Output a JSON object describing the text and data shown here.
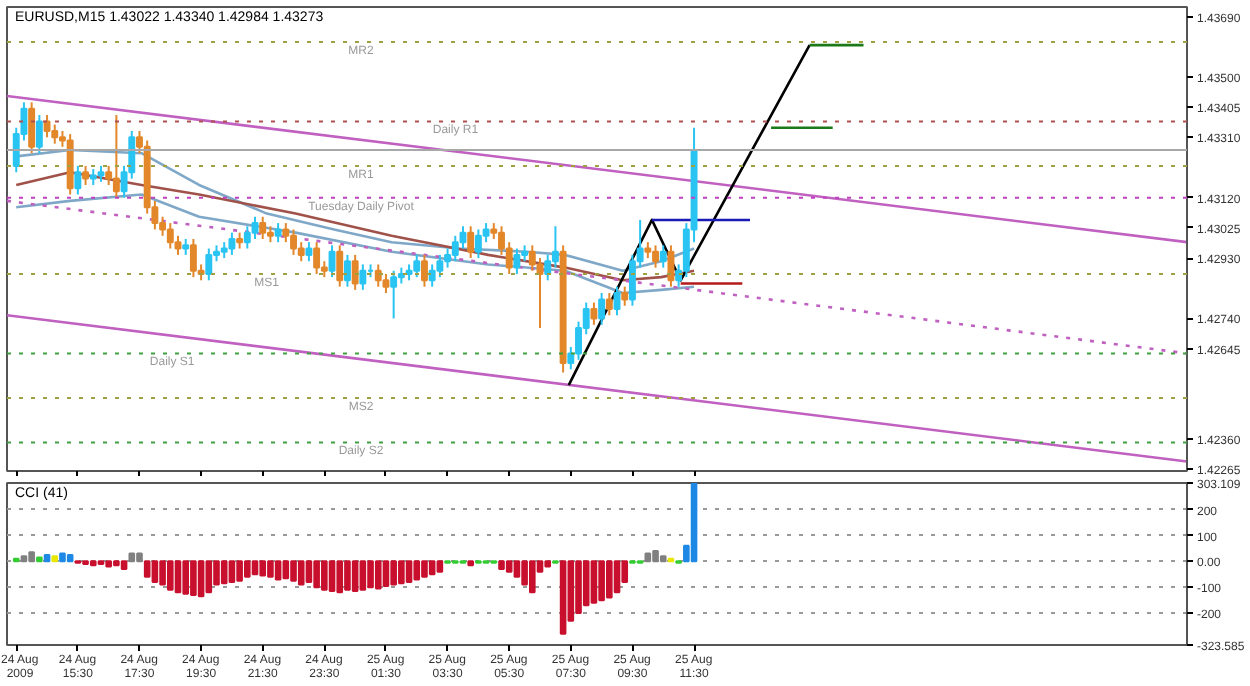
{
  "chart_data": [
    {
      "type": "candlestick",
      "title": "EURUSD,M15  1.43022 1.43340 1.42984 1.43273",
      "x": [
        "2009-08-24T13:30",
        "2009-08-24T13:45",
        "2009-08-24T14:00",
        "2009-08-24T14:15",
        "2009-08-24T14:30",
        "2009-08-24T14:45",
        "2009-08-24T15:00",
        "2009-08-24T15:15",
        "2009-08-24T15:30",
        "2009-08-24T15:45",
        "2009-08-24T16:00",
        "2009-08-24T16:15",
        "2009-08-24T16:30",
        "2009-08-24T16:45",
        "2009-08-24T17:00",
        "2009-08-24T17:15",
        "2009-08-24T17:30",
        "2009-08-24T17:45",
        "2009-08-24T18:00",
        "2009-08-24T18:15",
        "2009-08-24T18:30",
        "2009-08-24T18:45",
        "2009-08-24T19:00",
        "2009-08-24T19:15",
        "2009-08-24T19:30",
        "2009-08-24T19:45",
        "2009-08-24T20:00",
        "2009-08-24T20:15",
        "2009-08-24T20:30",
        "2009-08-24T20:45",
        "2009-08-24T21:00",
        "2009-08-24T21:15",
        "2009-08-24T21:30",
        "2009-08-24T21:45",
        "2009-08-24T22:00",
        "2009-08-24T22:15",
        "2009-08-24T22:30",
        "2009-08-24T22:45",
        "2009-08-24T23:00",
        "2009-08-24T23:15",
        "2009-08-24T23:30",
        "2009-08-24T23:45",
        "2009-08-25T00:00",
        "2009-08-25T00:15",
        "2009-08-25T00:30",
        "2009-08-25T00:45",
        "2009-08-25T01:00",
        "2009-08-25T01:15",
        "2009-08-25T01:30",
        "2009-08-25T01:45",
        "2009-08-25T02:00",
        "2009-08-25T02:15",
        "2009-08-25T02:30",
        "2009-08-25T02:45",
        "2009-08-25T03:00",
        "2009-08-25T03:15",
        "2009-08-25T03:30",
        "2009-08-25T03:45",
        "2009-08-25T04:00",
        "2009-08-25T04:15",
        "2009-08-25T04:30",
        "2009-08-25T04:45",
        "2009-08-25T05:00",
        "2009-08-25T05:15",
        "2009-08-25T05:30",
        "2009-08-25T05:45",
        "2009-08-25T06:00",
        "2009-08-25T06:15",
        "2009-08-25T06:30",
        "2009-08-25T06:45",
        "2009-08-25T07:00",
        "2009-08-25T07:15",
        "2009-08-25T07:30",
        "2009-08-25T07:45",
        "2009-08-25T08:00",
        "2009-08-25T08:15",
        "2009-08-25T08:30",
        "2009-08-25T08:45",
        "2009-08-25T09:00",
        "2009-08-25T09:15",
        "2009-08-25T09:30",
        "2009-08-25T09:45",
        "2009-08-25T10:00",
        "2009-08-25T10:15",
        "2009-08-25T10:30",
        "2009-08-25T10:45",
        "2009-08-25T11:00",
        "2009-08-25T11:15",
        "2009-08-25T11:30"
      ],
      "ohlc": [
        [
          1.4322,
          1.4334,
          1.432,
          1.4332
        ],
        [
          1.4332,
          1.4342,
          1.433,
          1.434
        ],
        [
          1.434,
          1.4342,
          1.4326,
          1.4328
        ],
        [
          1.4328,
          1.4338,
          1.4326,
          1.4336
        ],
        [
          1.4336,
          1.4338,
          1.4331,
          1.4333
        ],
        [
          1.4333,
          1.4335,
          1.4329,
          1.4331
        ],
        [
          1.4331,
          1.4333,
          1.4328,
          1.433
        ],
        [
          1.433,
          1.4332,
          1.4313,
          1.4315
        ],
        [
          1.4315,
          1.4322,
          1.4313,
          1.432
        ],
        [
          1.432,
          1.4322,
          1.4316,
          1.4318
        ],
        [
          1.4318,
          1.4321,
          1.4316,
          1.4319
        ],
        [
          1.4319,
          1.4322,
          1.4317,
          1.432
        ],
        [
          1.432,
          1.4322,
          1.4316,
          1.4318
        ],
        [
          1.4318,
          1.4338,
          1.4312,
          1.4314
        ],
        [
          1.4314,
          1.4322,
          1.4312,
          1.432
        ],
        [
          1.432,
          1.4333,
          1.4318,
          1.4331
        ],
        [
          1.4331,
          1.4333,
          1.4326,
          1.4328
        ],
        [
          1.4328,
          1.433,
          1.4307,
          1.4309
        ],
        [
          1.4309,
          1.4311,
          1.4302,
          1.4304
        ],
        [
          1.4304,
          1.4306,
          1.43,
          1.4302
        ],
        [
          1.4302,
          1.4304,
          1.4296,
          1.4298
        ],
        [
          1.4298,
          1.43,
          1.4294,
          1.4296
        ],
        [
          1.4296,
          1.4299,
          1.4294,
          1.4297
        ],
        [
          1.4297,
          1.4299,
          1.4287,
          1.4289
        ],
        [
          1.4289,
          1.4291,
          1.4286,
          1.4288
        ],
        [
          1.4288,
          1.4296,
          1.4286,
          1.4294
        ],
        [
          1.4294,
          1.4297,
          1.4292,
          1.4295
        ],
        [
          1.4295,
          1.4298,
          1.4293,
          1.4296
        ],
        [
          1.4296,
          1.4301,
          1.4294,
          1.4299
        ],
        [
          1.4299,
          1.4301,
          1.4296,
          1.4298
        ],
        [
          1.4298,
          1.4303,
          1.4296,
          1.4301
        ],
        [
          1.4301,
          1.4306,
          1.4299,
          1.4304
        ],
        [
          1.4304,
          1.4306,
          1.4299,
          1.4301
        ],
        [
          1.4301,
          1.4303,
          1.4298,
          1.43
        ],
        [
          1.43,
          1.4304,
          1.4298,
          1.4302
        ],
        [
          1.4302,
          1.4304,
          1.4298,
          1.43
        ],
        [
          1.43,
          1.4302,
          1.4294,
          1.4296
        ],
        [
          1.4296,
          1.4298,
          1.4292,
          1.4294
        ],
        [
          1.4294,
          1.4298,
          1.4292,
          1.4296
        ],
        [
          1.4296,
          1.4298,
          1.4288,
          1.429
        ],
        [
          1.429,
          1.4292,
          1.4287,
          1.4289
        ],
        [
          1.4289,
          1.4297,
          1.4287,
          1.4295
        ],
        [
          1.4295,
          1.4297,
          1.4284,
          1.4286
        ],
        [
          1.4286,
          1.4294,
          1.4284,
          1.4292
        ],
        [
          1.4292,
          1.4294,
          1.4283,
          1.4285
        ],
        [
          1.4285,
          1.4291,
          1.4283,
          1.4289
        ],
        [
          1.4289,
          1.4291,
          1.4287,
          1.4289
        ],
        [
          1.4289,
          1.4291,
          1.4284,
          1.4286
        ],
        [
          1.4286,
          1.4288,
          1.4282,
          1.4284
        ],
        [
          1.4284,
          1.4289,
          1.4274,
          1.4287
        ],
        [
          1.4287,
          1.429,
          1.4285,
          1.4288
        ],
        [
          1.4288,
          1.4291,
          1.4286,
          1.4289
        ],
        [
          1.4289,
          1.4294,
          1.4287,
          1.4292
        ],
        [
          1.4292,
          1.4294,
          1.4284,
          1.4286
        ],
        [
          1.4286,
          1.4291,
          1.4284,
          1.4289
        ],
        [
          1.4289,
          1.4294,
          1.4287,
          1.4292
        ],
        [
          1.4292,
          1.4296,
          1.429,
          1.4294
        ],
        [
          1.4294,
          1.43,
          1.4292,
          1.4298
        ],
        [
          1.4298,
          1.4303,
          1.4296,
          1.4301
        ],
        [
          1.4301,
          1.4303,
          1.4293,
          1.4295
        ],
        [
          1.4295,
          1.4302,
          1.4293,
          1.43
        ],
        [
          1.43,
          1.4304,
          1.4298,
          1.4302
        ],
        [
          1.4302,
          1.4304,
          1.4299,
          1.4301
        ],
        [
          1.4301,
          1.4303,
          1.4294,
          1.4296
        ],
        [
          1.4296,
          1.4298,
          1.4288,
          1.429
        ],
        [
          1.429,
          1.4296,
          1.4288,
          1.4294
        ],
        [
          1.4294,
          1.4297,
          1.4292,
          1.4295
        ],
        [
          1.4295,
          1.4297,
          1.4289,
          1.4291
        ],
        [
          1.4291,
          1.4293,
          1.4271,
          1.4288
        ],
        [
          1.4288,
          1.4294,
          1.4286,
          1.4292
        ],
        [
          1.4292,
          1.4303,
          1.429,
          1.4295
        ],
        [
          1.4295,
          1.4297,
          1.4257,
          1.426
        ],
        [
          1.426,
          1.4265,
          1.4258,
          1.4263
        ],
        [
          1.4263,
          1.4273,
          1.4261,
          1.4271
        ],
        [
          1.4271,
          1.4279,
          1.4269,
          1.4277
        ],
        [
          1.4277,
          1.4279,
          1.4272,
          1.4274
        ],
        [
          1.4274,
          1.4282,
          1.4272,
          1.428
        ],
        [
          1.428,
          1.4282,
          1.4275,
          1.4277
        ],
        [
          1.4277,
          1.4284,
          1.4275,
          1.4282
        ],
        [
          1.4282,
          1.4284,
          1.4278,
          1.428
        ],
        [
          1.428,
          1.4294,
          1.4278,
          1.4292
        ],
        [
          1.4292,
          1.4305,
          1.429,
          1.4296
        ],
        [
          1.4296,
          1.4298,
          1.4293,
          1.4295
        ],
        [
          1.4295,
          1.4297,
          1.429,
          1.4292
        ],
        [
          1.4292,
          1.4297,
          1.429,
          1.4295
        ],
        [
          1.4295,
          1.4297,
          1.4284,
          1.4286
        ],
        [
          1.4286,
          1.4291,
          1.4284,
          1.4289
        ],
        [
          1.4289,
          1.4304,
          1.4287,
          1.4302
        ],
        [
          1.4302,
          1.4334,
          1.4298,
          1.4327
        ]
      ],
      "colors": [
        "#29c4f2",
        "#29c4f2",
        "#e3872b",
        "#29c4f2",
        "#e3872b",
        "#e3872b",
        "#e3872b",
        "#e3872b",
        "#29c4f2",
        "#e3872b",
        "#29c4f2",
        "#29c4f2",
        "#e3872b",
        "#e3872b",
        "#29c4f2",
        "#29c4f2",
        "#e3872b",
        "#e3872b",
        "#e3872b",
        "#e3872b",
        "#e3872b",
        "#e3872b",
        "#29c4f2",
        "#e3872b",
        "#e3872b",
        "#29c4f2",
        "#29c4f2",
        "#29c4f2",
        "#29c4f2",
        "#e3872b",
        "#29c4f2",
        "#29c4f2",
        "#e3872b",
        "#e3872b",
        "#29c4f2",
        "#e3872b",
        "#e3872b",
        "#e3872b",
        "#29c4f2",
        "#e3872b",
        "#e3872b",
        "#29c4f2",
        "#e3872b",
        "#29c4f2",
        "#e3872b",
        "#29c4f2",
        "#29c4f2",
        "#e3872b",
        "#e3872b",
        "#29c4f2",
        "#29c4f2",
        "#29c4f2",
        "#29c4f2",
        "#e3872b",
        "#29c4f2",
        "#29c4f2",
        "#29c4f2",
        "#29c4f2",
        "#29c4f2",
        "#e3872b",
        "#29c4f2",
        "#29c4f2",
        "#e3872b",
        "#e3872b",
        "#e3872b",
        "#29c4f2",
        "#29c4f2",
        "#e3872b",
        "#e3872b",
        "#29c4f2",
        "#29c4f2",
        "#e3872b",
        "#29c4f2",
        "#29c4f2",
        "#29c4f2",
        "#e3872b",
        "#29c4f2",
        "#e3872b",
        "#29c4f2",
        "#e3872b",
        "#29c4f2",
        "#29c4f2",
        "#e3872b",
        "#e3872b",
        "#29c4f2",
        "#e3872b",
        "#29c4f2",
        "#29c4f2",
        "#29c4f2"
      ],
      "series": [
        {
          "type": "line",
          "color": "#7fa8c8",
          "x": [
            "2009-08-24T13:30",
            "2009-08-24T15:15",
            "2009-08-24T17:34",
            "2009-08-24T19:26",
            "2009-08-24T21:38",
            "2009-08-24T23:49",
            "2009-08-25T01:41",
            "2009-08-25T03:53",
            "2009-08-25T06:04",
            "2009-08-25T07:19",
            "2009-08-25T09:11",
            "2009-08-25T10:26",
            "2009-08-25T11:30"
          ],
          "values": [
            1.4325,
            1.4327,
            1.4326,
            1.4316,
            1.4307,
            1.4302,
            1.4298,
            1.4296,
            1.4295,
            1.4294,
            1.4289,
            1.4292,
            1.4296
          ]
        },
        {
          "type": "line",
          "color": "#a0524a",
          "x": [
            "2009-08-24T13:30",
            "2009-08-24T15:15",
            "2009-08-24T17:34",
            "2009-08-24T19:26",
            "2009-08-24T22:34",
            "2009-08-25T01:41",
            "2009-08-25T04:49",
            "2009-08-25T07:19",
            "2009-08-25T09:11",
            "2009-08-25T10:26",
            "2009-08-25T11:30"
          ],
          "values": [
            1.4316,
            1.432,
            1.4316,
            1.4313,
            1.4307,
            1.43,
            1.4294,
            1.429,
            1.4286,
            1.4287,
            1.4289
          ]
        },
        {
          "type": "line",
          "color": "#7fa8c8",
          "x": [
            "2009-08-24T13:30",
            "2009-08-24T15:15",
            "2009-08-24T17:34",
            "2009-08-24T19:26",
            "2009-08-24T22:34",
            "2009-08-25T01:41",
            "2009-08-25T04:49",
            "2009-08-25T07:19",
            "2009-08-25T09:11",
            "2009-08-25T10:26",
            "2009-08-25T11:30"
          ],
          "values": [
            1.4309,
            1.4311,
            1.4313,
            1.4306,
            1.4301,
            1.4295,
            1.4291,
            1.4289,
            1.4282,
            1.4283,
            1.4284
          ]
        },
        {
          "type": "line",
          "color": "#c060c0",
          "x": [
            "2009-08-24T13:12",
            "2009-08-26T03:30"
          ],
          "values": [
            1.4344,
            1.4298
          ]
        },
        {
          "type": "line",
          "color": "#c060c0",
          "line_style": "dotted",
          "x": [
            "2009-08-24T13:12",
            "2009-08-26T03:30"
          ],
          "values": [
            1.4311,
            1.4263
          ]
        },
        {
          "type": "line",
          "color": "#c060c0",
          "x": [
            "2009-08-24T13:12",
            "2009-08-26T03:30"
          ],
          "values": [
            1.4275,
            1.4229
          ]
        },
        {
          "type": "line",
          "color": "#000000",
          "x": [
            "2009-08-25T07:26",
            "2009-08-25T10:08",
            "2009-08-25T11:04",
            "2009-08-25T15:15"
          ],
          "values": [
            1.4253,
            1.4305,
            1.4286,
            1.436
          ]
        },
        {
          "type": "line",
          "color": "#1a1ab4",
          "x": [
            "2009-08-25T10:08",
            "2009-08-25T13:19"
          ],
          "values": [
            1.4305,
            1.4305
          ]
        },
        {
          "type": "line",
          "color": "#b41a1a",
          "x": [
            "2009-08-25T11:04",
            "2009-08-25T13:04"
          ],
          "values": [
            1.4285,
            1.4285
          ]
        },
        {
          "type": "line",
          "color": "#1a7a1a",
          "x": [
            "2009-08-25T14:00",
            "2009-08-25T16:00"
          ],
          "values": [
            1.4334,
            1.4334
          ]
        },
        {
          "type": "line",
          "color": "#1a7a1a",
          "x": [
            "2009-08-25T15:15",
            "2009-08-25T17:00"
          ],
          "values": [
            1.436,
            1.436
          ]
        }
      ],
      "ref_lines": [
        {
          "axis": "y",
          "value": 1.4361,
          "label": "MR2",
          "color": "#a0a040",
          "line_style": "dotted"
        },
        {
          "axis": "y",
          "value": 1.4336,
          "label": "Daily R1",
          "color": "#b05050",
          "line_style": "dotted"
        },
        {
          "axis": "y",
          "value": 1.4327,
          "label": null,
          "color": "#a8a8a8",
          "line_style": "solid"
        },
        {
          "axis": "y",
          "value": 1.4322,
          "label": "MR1",
          "color": "#a0a040",
          "line_style": "dotted"
        },
        {
          "axis": "y",
          "value": 1.4312,
          "label": "Tuesday Daily Pivot",
          "color": "#c040c0",
          "line_style": "dotted"
        },
        {
          "axis": "y",
          "value": 1.4288,
          "label": "MS1",
          "color": "#a0a040",
          "line_style": "dotted"
        },
        {
          "axis": "y",
          "value": 1.4263,
          "label": "Daily S1",
          "color": "#40a040",
          "line_style": "dotted"
        },
        {
          "axis": "y",
          "value": 1.4249,
          "label": "MS2",
          "color": "#a0a040",
          "line_style": "dotted"
        },
        {
          "axis": "y",
          "value": 1.4235,
          "label": "Daily S2",
          "color": "#40a040",
          "line_style": "dotted"
        }
      ],
      "xlim": [
        "2009-08-24T13:12",
        "2009-08-26T03:30"
      ],
      "xticks": [
        "2009-08-24T13:30",
        "2009-08-24T15:30",
        "2009-08-24T17:30",
        "2009-08-24T19:30",
        "2009-08-24T21:30",
        "2009-08-24T23:30",
        "2009-08-25T01:30",
        "2009-08-25T03:30",
        "2009-08-25T05:30",
        "2009-08-25T07:30",
        "2009-08-25T09:30",
        "2009-08-25T11:30"
      ],
      "ylim": [
        1.4226,
        1.4372
      ],
      "yticks": [
        {
          "value": 1.4369,
          "label": "1.43690"
        },
        {
          "value": 1.435,
          "label": "1.43500"
        },
        {
          "value": 1.43405,
          "label": "1.43405"
        },
        {
          "value": 1.4331,
          "label": "1.43310"
        },
        {
          "value": 1.4312,
          "label": "1.43120"
        },
        {
          "value": 1.43025,
          "label": "1.43025"
        },
        {
          "value": 1.4293,
          "label": "1.42930"
        },
        {
          "value": 1.4274,
          "label": "1.42740"
        },
        {
          "value": 1.42645,
          "label": "1.42645"
        },
        {
          "value": 1.4236,
          "label": "1.42360"
        },
        {
          "value": 1.42265,
          "label": "1.42265"
        }
      ],
      "tick_labels": "y"
    },
    {
      "type": "bar",
      "title": "CCI (41)",
      "x": [
        "2009-08-24T13:30",
        "2009-08-24T13:45",
        "2009-08-24T14:00",
        "2009-08-24T14:15",
        "2009-08-24T14:30",
        "2009-08-24T14:45",
        "2009-08-24T15:00",
        "2009-08-24T15:15",
        "2009-08-24T15:30",
        "2009-08-24T15:45",
        "2009-08-24T16:00",
        "2009-08-24T16:15",
        "2009-08-24T16:30",
        "2009-08-24T16:45",
        "2009-08-24T17:00",
        "2009-08-24T17:15",
        "2009-08-24T17:30",
        "2009-08-24T17:45",
        "2009-08-24T18:00",
        "2009-08-24T18:15",
        "2009-08-24T18:30",
        "2009-08-24T18:45",
        "2009-08-24T19:00",
        "2009-08-24T19:15",
        "2009-08-24T19:30",
        "2009-08-24T19:45",
        "2009-08-24T20:00",
        "2009-08-24T20:15",
        "2009-08-24T20:30",
        "2009-08-24T20:45",
        "2009-08-24T21:00",
        "2009-08-24T21:15",
        "2009-08-24T21:30",
        "2009-08-24T21:45",
        "2009-08-24T22:00",
        "2009-08-24T22:15",
        "2009-08-24T22:30",
        "2009-08-24T22:45",
        "2009-08-24T23:00",
        "2009-08-24T23:15",
        "2009-08-24T23:30",
        "2009-08-24T23:45",
        "2009-08-25T00:00",
        "2009-08-25T00:15",
        "2009-08-25T00:30",
        "2009-08-25T00:45",
        "2009-08-25T01:00",
        "2009-08-25T01:15",
        "2009-08-25T01:30",
        "2009-08-25T01:45",
        "2009-08-25T02:00",
        "2009-08-25T02:15",
        "2009-08-25T02:30",
        "2009-08-25T02:45",
        "2009-08-25T03:00",
        "2009-08-25T03:15",
        "2009-08-25T03:30",
        "2009-08-25T03:45",
        "2009-08-25T04:00",
        "2009-08-25T04:15",
        "2009-08-25T04:30",
        "2009-08-25T04:45",
        "2009-08-25T05:00",
        "2009-08-25T05:15",
        "2009-08-25T05:30",
        "2009-08-25T05:45",
        "2009-08-25T06:00",
        "2009-08-25T06:15",
        "2009-08-25T06:30",
        "2009-08-25T06:45",
        "2009-08-25T07:00",
        "2009-08-25T07:15",
        "2009-08-25T07:30",
        "2009-08-25T07:45",
        "2009-08-25T08:00",
        "2009-08-25T08:15",
        "2009-08-25T08:30",
        "2009-08-25T08:45",
        "2009-08-25T09:00",
        "2009-08-25T09:15",
        "2009-08-25T09:30",
        "2009-08-25T09:45",
        "2009-08-25T10:00",
        "2009-08-25T10:15",
        "2009-08-25T10:30",
        "2009-08-25T10:45",
        "2009-08-25T11:00",
        "2009-08-25T11:15",
        "2009-08-25T11:30"
      ],
      "values": [
        10,
        20,
        35,
        15,
        25,
        20,
        30,
        25,
        -5,
        -10,
        -15,
        -10,
        -20,
        -15,
        -30,
        30,
        30,
        -60,
        -80,
        -90,
        -110,
        -120,
        -125,
        -130,
        -135,
        -120,
        -90,
        -85,
        -80,
        -75,
        -60,
        -50,
        -55,
        -60,
        -70,
        -65,
        -75,
        -90,
        -80,
        -100,
        -110,
        -115,
        -120,
        -110,
        -115,
        -110,
        -100,
        -105,
        -95,
        -90,
        -85,
        -80,
        -70,
        -60,
        -50,
        -40,
        -5,
        -5,
        -5,
        -15,
        -5,
        -5,
        -5,
        -30,
        -40,
        -60,
        -90,
        -120,
        -40,
        -20,
        -5,
        -280,
        -230,
        -200,
        -170,
        -160,
        -150,
        -140,
        -120,
        -80,
        -5,
        -5,
        30,
        40,
        20,
        10,
        -5,
        60,
        300
      ],
      "colors": [
        "#33cc33",
        "#808080",
        "#808080",
        "#33cc33",
        "#1e88e5",
        "#e8e800",
        "#1e88e5",
        "#1e88e5",
        "#c8102e",
        "#c8102e",
        "#c8102e",
        "#c8102e",
        "#c8102e",
        "#c8102e",
        "#c8102e",
        "#808080",
        "#808080",
        "#c8102e",
        "#c8102e",
        "#c8102e",
        "#c8102e",
        "#c8102e",
        "#c8102e",
        "#c8102e",
        "#c8102e",
        "#c8102e",
        "#c8102e",
        "#c8102e",
        "#c8102e",
        "#c8102e",
        "#c8102e",
        "#c8102e",
        "#c8102e",
        "#c8102e",
        "#c8102e",
        "#c8102e",
        "#c8102e",
        "#c8102e",
        "#c8102e",
        "#c8102e",
        "#c8102e",
        "#c8102e",
        "#c8102e",
        "#c8102e",
        "#c8102e",
        "#c8102e",
        "#c8102e",
        "#c8102e",
        "#c8102e",
        "#c8102e",
        "#c8102e",
        "#c8102e",
        "#c8102e",
        "#c8102e",
        "#c8102e",
        "#c8102e",
        "#33cc33",
        "#33cc33",
        "#33cc33",
        "#c8102e",
        "#33cc33",
        "#33cc33",
        "#33cc33",
        "#c8102e",
        "#c8102e",
        "#c8102e",
        "#c8102e",
        "#c8102e",
        "#c8102e",
        "#c8102e",
        "#33cc33",
        "#c8102e",
        "#c8102e",
        "#c8102e",
        "#c8102e",
        "#c8102e",
        "#c8102e",
        "#c8102e",
        "#c8102e",
        "#c8102e",
        "#33cc33",
        "#33cc33",
        "#808080",
        "#808080",
        "#808080",
        "#e8e800",
        "#33cc33",
        "#1e88e5",
        "#1e88e5"
      ],
      "xlim": [
        "2009-08-24T13:12",
        "2009-08-26T03:30"
      ],
      "xticks": [
        {
          "value": "2009-08-24T13:30",
          "label": "24 Aug 2009"
        },
        {
          "value": "2009-08-24T15:30",
          "label": "24 Aug 15:30"
        },
        {
          "value": "2009-08-24T17:30",
          "label": "24 Aug 17:30"
        },
        {
          "value": "2009-08-24T19:30",
          "label": "24 Aug 19:30"
        },
        {
          "value": "2009-08-24T21:30",
          "label": "24 Aug 21:30"
        },
        {
          "value": "2009-08-24T23:30",
          "label": "24 Aug 23:30"
        },
        {
          "value": "2009-08-25T01:30",
          "label": "25 Aug 01:30"
        },
        {
          "value": "2009-08-25T03:30",
          "label": "25 Aug 03:30"
        },
        {
          "value": "2009-08-25T05:30",
          "label": "25 Aug 05:30"
        },
        {
          "value": "2009-08-25T07:30",
          "label": "25 Aug 07:30"
        },
        {
          "value": "2009-08-25T09:30",
          "label": "25 Aug 09:30"
        },
        {
          "value": "2009-08-25T11:30",
          "label": "25 Aug 11:30"
        }
      ],
      "ylim": [
        -323.585,
        303.109
      ],
      "yticks": [
        {
          "value": 303.109,
          "label": "303.109"
        },
        200,
        100,
        {
          "value": 0,
          "label": "0.00"
        },
        -100,
        -200,
        {
          "value": -323.585,
          "label": "-323.585"
        }
      ],
      "grid": "y"
    }
  ]
}
